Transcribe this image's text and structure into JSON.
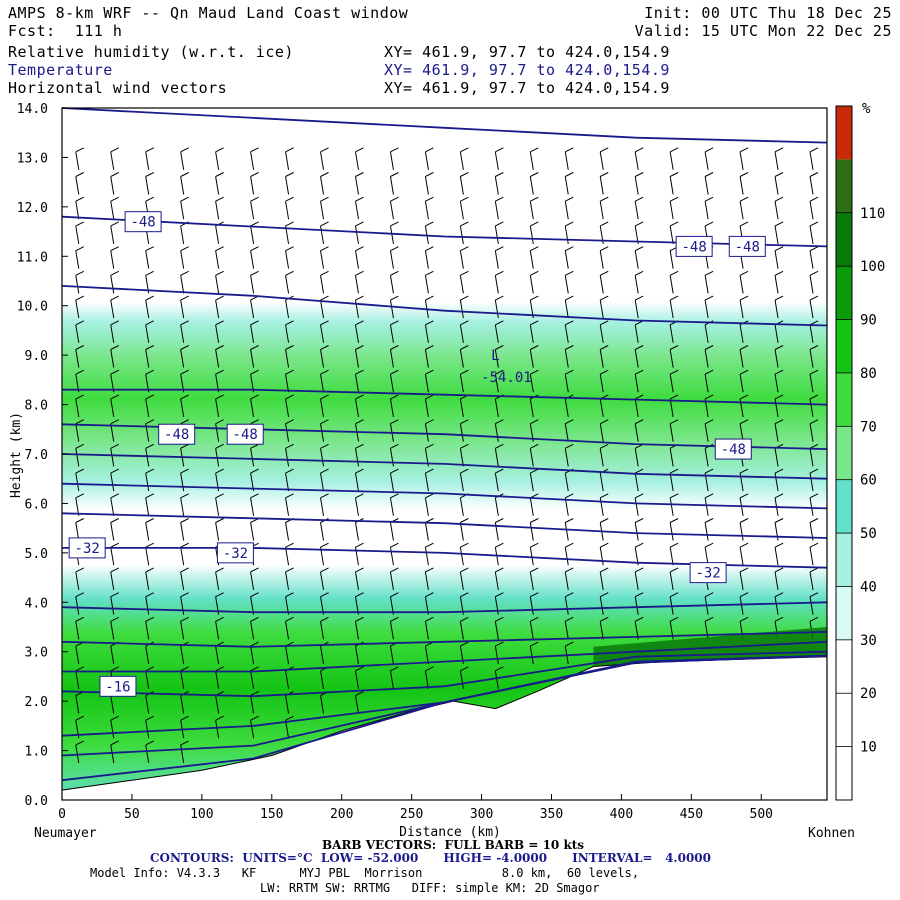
{
  "header": {
    "title": "AMPS 8-km WRF -- Qn Maud Land Coast window",
    "fcst": "Fcst:  111 h",
    "init": "Init: 00 UTC Thu 18 Dec 25",
    "valid": "Valid: 15 UTC Mon 22 Dec 25",
    "fields": [
      {
        "name": "Relative humidity (w.r.t. ice)",
        "xy": "XY= 461.9, 97.7 to 424.0,154.9"
      },
      {
        "name": "Temperature",
        "xy": "XY= 461.9, 97.7 to 424.0,154.9"
      },
      {
        "name": "Horizontal wind vectors",
        "xy": "XY= 461.9, 97.7 to 424.0,154.9"
      }
    ]
  },
  "footer": {
    "barb": "BARB VECTORS:  FULL BARB = 10 kts",
    "contours": "CONTOURS:  UNITS=°C  LOW= -52.000      HIGH= -4.0000      INTERVAL=   4.0000",
    "model1": "Model Info: V4.3.3   KF      MYJ PBL  Morrison           8.0 km,  60 levels,",
    "model2": "LW: RRTM SW: RRTMG   DIFF: simple KM: 2D Smagor"
  },
  "colors": {
    "temp_line": "#1a1a8c",
    "rh_bands": [
      "#ffffff",
      "#ffffff",
      "#ffffff",
      "#d8faf2",
      "#a6f0e2",
      "#62e0c8",
      "#7ae68a",
      "#3edc3e",
      "#14c414",
      "#0a9a0a",
      "#0a7a0a",
      "#2e6e14",
      "#c82a0a"
    ]
  },
  "chart_data": {
    "type": "cross-section",
    "x": {
      "label": "Distance (km)",
      "min": 0,
      "max": 547,
      "ticks": [
        0,
        50,
        100,
        150,
        200,
        250,
        300,
        350,
        400,
        450,
        500
      ]
    },
    "y": {
      "label": "Height (km)",
      "min": 0,
      "max": 14,
      "ticks": [
        "0.0",
        "1.0",
        "2.0",
        "3.0",
        "4.0",
        "5.0",
        "6.0",
        "7.0",
        "8.0",
        "9.0",
        "10.0",
        "11.0",
        "12.0",
        "13.0",
        "14.0"
      ]
    },
    "endpoints": {
      "left": "Neumayer",
      "right": "Kohnen"
    },
    "colorbar": {
      "unit": "%",
      "labels": [
        "10",
        "20",
        "30",
        "40",
        "50",
        "60",
        "70",
        "80",
        "90",
        "100",
        "110"
      ]
    },
    "terrain_km": [
      [
        0,
        0.2
      ],
      [
        50,
        0.4
      ],
      [
        100,
        0.6
      ],
      [
        150,
        0.9
      ],
      [
        200,
        1.4
      ],
      [
        250,
        1.8
      ],
      [
        280,
        2.0
      ],
      [
        310,
        1.85
      ],
      [
        340,
        2.2
      ],
      [
        380,
        2.7
      ],
      [
        430,
        2.8
      ],
      [
        547,
        2.9
      ]
    ],
    "temperature_contours": [
      {
        "value": -44,
        "heights_km": [
          14.0,
          13.8,
          13.6,
          13.4,
          13.3
        ]
      },
      {
        "value": -48,
        "heights_km": [
          11.8,
          11.6,
          11.4,
          11.3,
          11.2
        ]
      },
      {
        "value": -52,
        "heights_km": [
          10.4,
          10.2,
          9.9,
          9.7,
          9.6
        ]
      },
      {
        "value": -52,
        "heights_km": [
          8.3,
          8.3,
          8.2,
          8.1,
          8.0
        ]
      },
      {
        "value": -48,
        "heights_km": [
          7.6,
          7.5,
          7.4,
          7.2,
          7.1
        ]
      },
      {
        "value": -44,
        "heights_km": [
          7.0,
          6.9,
          6.8,
          6.6,
          6.5
        ]
      },
      {
        "value": -40,
        "heights_km": [
          6.4,
          6.3,
          6.2,
          6.0,
          5.9
        ]
      },
      {
        "value": -36,
        "heights_km": [
          5.8,
          5.7,
          5.6,
          5.4,
          5.3
        ]
      },
      {
        "value": -32,
        "heights_km": [
          5.1,
          5.1,
          5.0,
          4.8,
          4.7
        ]
      },
      {
        "value": -28,
        "heights_km": [
          3.9,
          3.8,
          3.8,
          3.9,
          4.0
        ]
      },
      {
        "value": -24,
        "heights_km": [
          3.2,
          3.1,
          3.2,
          3.3,
          3.4
        ]
      },
      {
        "value": -20,
        "heights_km": [
          2.6,
          2.6,
          2.8,
          3.0,
          3.2
        ]
      },
      {
        "value": -16,
        "heights_km": [
          2.2,
          2.1,
          2.3,
          2.9,
          3.0
        ]
      },
      {
        "value": -12,
        "heights_km": [
          1.3,
          1.5,
          1.9,
          2.8,
          2.9
        ]
      },
      {
        "value": -8,
        "heights_km": [
          0.9,
          1.1,
          1.6,
          2.7,
          2.9
        ]
      },
      {
        "value": -4,
        "heights_km": [
          0.4,
          0.8,
          1.4,
          2.7,
          2.9
        ]
      }
    ],
    "contour_labels": [
      {
        "text": "-48",
        "x_km": 58,
        "y_km": 11.7
      },
      {
        "text": "-48",
        "x_km": 452,
        "y_km": 11.2
      },
      {
        "text": "-48",
        "x_km": 490,
        "y_km": 11.2
      },
      {
        "text": "-48",
        "x_km": 82,
        "y_km": 7.4
      },
      {
        "text": "-48",
        "x_km": 131,
        "y_km": 7.4
      },
      {
        "text": "-48",
        "x_km": 480,
        "y_km": 7.1
      },
      {
        "text": "-32",
        "x_km": 18,
        "y_km": 5.1
      },
      {
        "text": "-32",
        "x_km": 124,
        "y_km": 5.0
      },
      {
        "text": "-32",
        "x_km": 462,
        "y_km": 4.6
      },
      {
        "text": "-16",
        "x_km": 40,
        "y_km": 2.3
      }
    ],
    "low_marker": {
      "symbol": "L",
      "value": "-54.01",
      "x_km": 304,
      "y_km": 8.9
    },
    "rh_field": {
      "moist_layers": [
        {
          "bottom_km": 5.6,
          "top_km": 9.7,
          "max_pct": 85
        },
        {
          "bottom_km": 0.0,
          "top_km": 4.0,
          "max_pct": 95
        }
      ],
      "dry_layer_km": [
        4.0,
        5.6
      ],
      "surface_max_pct": 110
    },
    "wind_barbs": {
      "full_barb_kts": 10,
      "direction": "westerly",
      "column_spacing_km": 25
    }
  }
}
